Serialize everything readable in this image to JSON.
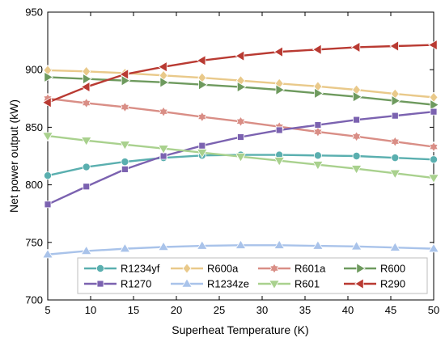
{
  "chart_data": {
    "type": "line",
    "title": "",
    "xlabel": "Superheat Temperature (K)",
    "ylabel": "Net power output (kW)",
    "xlim": [
      5,
      50
    ],
    "ylim": [
      700,
      950
    ],
    "xticks": [
      "5",
      "10",
      "15",
      "20",
      "25",
      "30",
      "35",
      "40",
      "45",
      "50"
    ],
    "yticks": [
      "700",
      "750",
      "800",
      "850",
      "900",
      "950"
    ],
    "grid": false,
    "legend_position": "bottom, inside plot area, 4 columns",
    "x": [
      5,
      9.5,
      14,
      18.5,
      23,
      27.5,
      32,
      36.5,
      41,
      45.5,
      50
    ],
    "series": [
      {
        "name": "R1234yf",
        "marker": "circle",
        "color": "#5AAFAF",
        "values": [
          808,
          815.5,
          820,
          823.5,
          825.5,
          826,
          826,
          825.5,
          825,
          823.5,
          822
        ]
      },
      {
        "name": "R600a",
        "marker": "diamond",
        "color": "#E9C98A",
        "values": [
          899.5,
          898.5,
          897,
          895,
          893,
          890.5,
          888,
          885.5,
          882.5,
          879,
          876
        ]
      },
      {
        "name": "R601a",
        "marker": "hexagram",
        "color": "#D98E86",
        "values": [
          875,
          871,
          867.5,
          863.5,
          859,
          855,
          850.5,
          846,
          842,
          837.5,
          833
        ]
      },
      {
        "name": "R600",
        "marker": "triangle-right",
        "color": "#6E9A5E",
        "values": [
          893.5,
          892,
          890.5,
          889,
          887,
          885,
          882.5,
          879.5,
          876.5,
          873,
          869.5
        ]
      },
      {
        "name": "R1270",
        "marker": "square",
        "color": "#7B62B0",
        "values": [
          783,
          798.5,
          813.5,
          825,
          834,
          841.5,
          847.5,
          852,
          856.5,
          860,
          863.5
        ]
      },
      {
        "name": "R1234ze",
        "marker": "triangle-up",
        "color": "#A9C3EA",
        "values": [
          739.5,
          742.5,
          744.5,
          746,
          747,
          747.5,
          747.5,
          747,
          746.5,
          745.5,
          744.5
        ]
      },
      {
        "name": "R601",
        "marker": "triangle-down",
        "color": "#A9D18E",
        "values": [
          842.5,
          838.5,
          835,
          831.5,
          828,
          824.5,
          821,
          817.5,
          814,
          810,
          806
        ]
      },
      {
        "name": "R290",
        "marker": "triangle-left",
        "color": "#B93A32",
        "values": [
          871.5,
          885,
          896,
          902.5,
          908,
          912,
          915.5,
          917.5,
          919.5,
          920.5,
          921.5
        ]
      }
    ]
  }
}
